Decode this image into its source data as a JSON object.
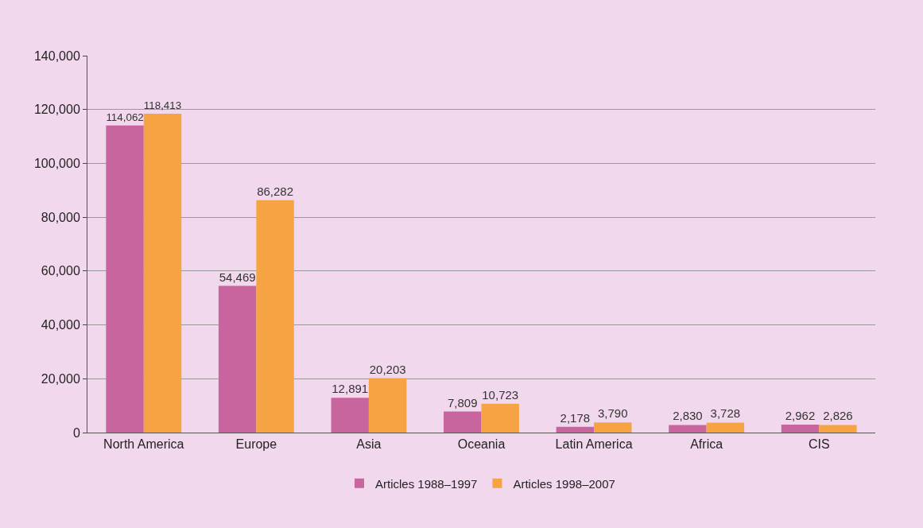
{
  "chart_data": {
    "type": "bar",
    "categories": [
      "North America",
      "Europe",
      "Asia",
      "Oceania",
      "Latin America",
      "Africa",
      "CIS"
    ],
    "series": [
      {
        "name": "Articles 1988–1997",
        "color": "#c8649e",
        "values": [
          114062,
          54469,
          12891,
          7809,
          2178,
          2830,
          2962
        ],
        "value_labels": [
          "114,062",
          "54,469",
          "12,891",
          "7,809",
          "2,178",
          "2,830",
          "2,962"
        ]
      },
      {
        "name": "Articles 1998–2007",
        "color": "#f6a443",
        "values": [
          118413,
          86282,
          20203,
          10723,
          3790,
          3728,
          2826
        ],
        "value_labels": [
          "118,413",
          "86,282",
          "20,203",
          "10,723",
          "3,790",
          "3,728",
          "2,826"
        ]
      }
    ],
    "ylim": [
      0,
      140000
    ],
    "yticks": [
      {
        "value": 0,
        "label": "0"
      },
      {
        "value": 20000,
        "label": "20,000"
      },
      {
        "value": 40000,
        "label": "40,000"
      },
      {
        "value": 60000,
        "label": "60,000"
      },
      {
        "value": 80000,
        "label": "80,000"
      },
      {
        "value": 100000,
        "label": "100,000"
      },
      {
        "value": 120000,
        "label": "120,000"
      },
      {
        "value": 140000,
        "label": "140,000"
      }
    ],
    "grid": "y",
    "legend": "bottom"
  }
}
